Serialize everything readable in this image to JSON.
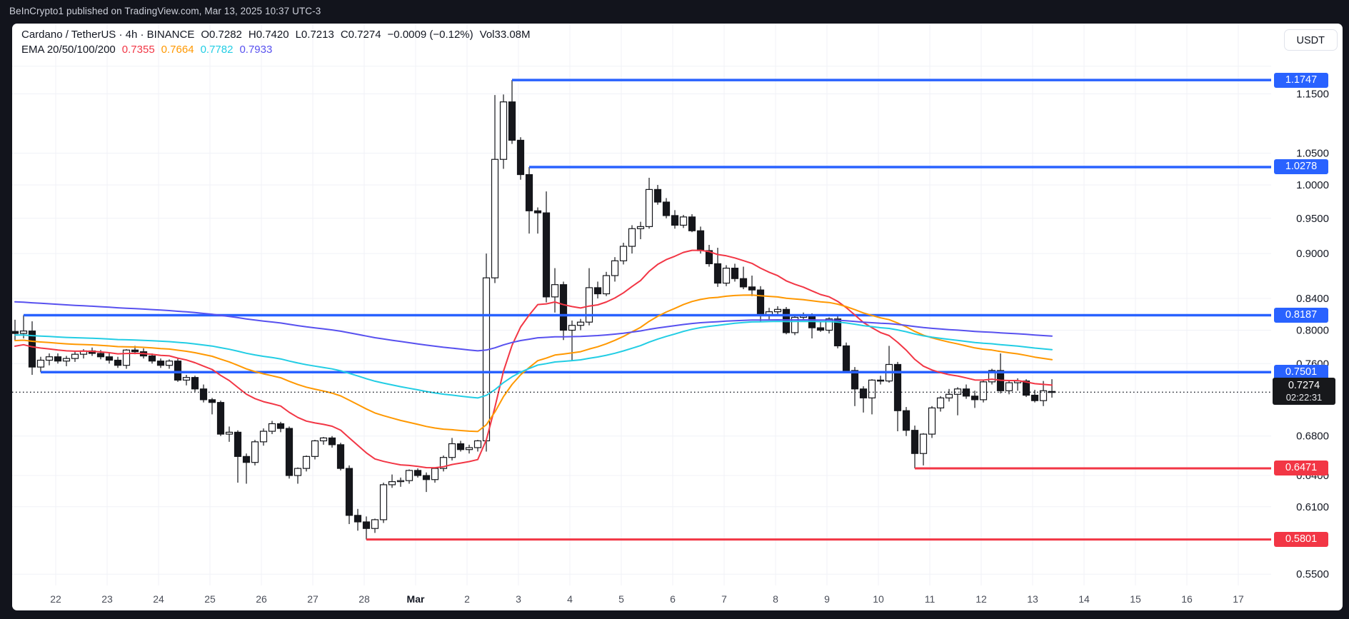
{
  "topbar": {
    "text": "BeInCrypto1 published on TradingView.com, Mar 13, 2025 10:37 UTC-3"
  },
  "legend": {
    "title": "Cardano / TetherUS · 4h · BINANCE",
    "ohlc_segments": [
      "O0.7282",
      "H0.7420",
      "L0.7213",
      "C0.7274",
      "−0.0009 (−0.12%)",
      "Vol33.08M"
    ],
    "ema_label": "EMA 20/50/100/200"
  },
  "price_scale": {
    "currency_button": "USDT"
  },
  "colors": {
    "accent_blue": "#2962ff",
    "accent_red": "#f23645",
    "candle_dark": "#15161b",
    "grid": "#f0f2f7",
    "axis_text": "#131722",
    "ema20": "#f23645",
    "ema50": "#ff9800",
    "ema100": "#22cde4",
    "ema200": "#5851ef"
  },
  "chart_data": {
    "type": "candlestick",
    "title": "Cardano / TetherUS",
    "exchange": "BINANCE",
    "interval": "4h",
    "scale": "logarithmic",
    "ylim": [
      0.535,
      1.205
    ],
    "last": {
      "price": 0.7274,
      "label": "0.7274",
      "countdown": "02:22:31"
    },
    "current_bar": {
      "open": "0.7282",
      "high": "0.7420",
      "low": "0.7213",
      "close": "0.7274",
      "change": "−0.0009",
      "change_pct": "−0.12%",
      "volume": "33.08M"
    },
    "x_axis": {
      "labels": [
        "22",
        "23",
        "24",
        "25",
        "26",
        "27",
        "28",
        "Mar",
        "2",
        "3",
        "4",
        "5",
        "6",
        "7",
        "8",
        "9",
        "10",
        "11",
        "12",
        "13",
        "14",
        "15",
        "16",
        "17"
      ],
      "month_label": "Mar",
      "candles_per_day": 6
    },
    "y_axis": {
      "labels": [
        {
          "value": 1.15,
          "text": "1.1500"
        },
        {
          "value": 1.05,
          "text": "1.0500"
        },
        {
          "value": 1.0,
          "text": "1.0000"
        },
        {
          "value": 0.95,
          "text": "0.9500"
        },
        {
          "value": 0.9,
          "text": "0.9000"
        },
        {
          "value": 0.84,
          "text": "0.8400"
        },
        {
          "value": 0.8,
          "text": "0.8000"
        },
        {
          "value": 0.76,
          "text": "0.7600"
        },
        {
          "value": 0.68,
          "text": "0.6800"
        },
        {
          "value": 0.64,
          "text": "0.6400"
        },
        {
          "value": 0.61,
          "text": "0.6100"
        },
        {
          "value": 0.55,
          "text": "0.5500"
        }
      ],
      "extra_gridlines": [
        1.2
      ]
    },
    "levels": [
      {
        "price": 1.1747,
        "label": "1.1747",
        "type": "resistance",
        "from_candle": 58
      },
      {
        "price": 1.0278,
        "label": "1.0278",
        "type": "resistance",
        "from_candle": 60
      },
      {
        "price": 0.8187,
        "label": "0.8187",
        "type": "resistance",
        "from_candle": 1
      },
      {
        "price": 0.7501,
        "label": "0.7501",
        "type": "resistance",
        "from_candle": 3
      },
      {
        "price": 0.6471,
        "label": "0.6471",
        "type": "support",
        "from_candle": 105
      },
      {
        "price": 0.5801,
        "label": "0.5801",
        "type": "support",
        "from_candle": 41
      }
    ],
    "emas": [
      {
        "period": 20,
        "seed": 0.779,
        "color": "#f23645",
        "value": "0.7355"
      },
      {
        "period": 50,
        "seed": 0.787,
        "color": "#ff9800",
        "value": "0.7664"
      },
      {
        "period": 100,
        "seed": 0.794,
        "color": "#22cde4",
        "value": "0.7782"
      },
      {
        "period": 200,
        "seed": 0.836,
        "color": "#5851ef",
        "value": "0.7933"
      }
    ],
    "candles": [
      [
        0.7985,
        0.813,
        0.788,
        0.796
      ],
      [
        0.796,
        0.8187,
        0.79,
        0.799
      ],
      [
        0.799,
        0.811,
        0.747,
        0.756
      ],
      [
        0.756,
        0.768,
        0.7501,
        0.764
      ],
      [
        0.764,
        0.772,
        0.758,
        0.768
      ],
      [
        0.768,
        0.772,
        0.76,
        0.763
      ],
      [
        0.763,
        0.769,
        0.757,
        0.766
      ],
      [
        0.766,
        0.774,
        0.762,
        0.771
      ],
      [
        0.771,
        0.777,
        0.766,
        0.775
      ],
      [
        0.775,
        0.779,
        0.769,
        0.772
      ],
      [
        0.772,
        0.776,
        0.765,
        0.768
      ],
      [
        0.768,
        0.772,
        0.76,
        0.764
      ],
      [
        0.764,
        0.768,
        0.755,
        0.758
      ],
      [
        0.758,
        0.777,
        0.754,
        0.776
      ],
      [
        0.776,
        0.781,
        0.771,
        0.774
      ],
      [
        0.774,
        0.778,
        0.766,
        0.769
      ],
      [
        0.769,
        0.772,
        0.76,
        0.763
      ],
      [
        0.763,
        0.766,
        0.755,
        0.758
      ],
      [
        0.758,
        0.765,
        0.754,
        0.763
      ],
      [
        0.763,
        0.766,
        0.739,
        0.741
      ],
      [
        0.741,
        0.747,
        0.735,
        0.744
      ],
      [
        0.744,
        0.746,
        0.728,
        0.731
      ],
      [
        0.731,
        0.736,
        0.716,
        0.719
      ],
      [
        0.719,
        0.721,
        0.703,
        0.716
      ],
      [
        0.716,
        0.718,
        0.68,
        0.682
      ],
      [
        0.682,
        0.69,
        0.674,
        0.684
      ],
      [
        0.684,
        0.686,
        0.633,
        0.659
      ],
      [
        0.659,
        0.662,
        0.632,
        0.653
      ],
      [
        0.653,
        0.676,
        0.65,
        0.674
      ],
      [
        0.674,
        0.688,
        0.67,
        0.685
      ],
      [
        0.685,
        0.696,
        0.682,
        0.693
      ],
      [
        0.693,
        0.695,
        0.684,
        0.688
      ],
      [
        0.688,
        0.69,
        0.637,
        0.64
      ],
      [
        0.64,
        0.648,
        0.632,
        0.647
      ],
      [
        0.647,
        0.66,
        0.644,
        0.659
      ],
      [
        0.659,
        0.676,
        0.656,
        0.675
      ],
      [
        0.675,
        0.679,
        0.671,
        0.678
      ],
      [
        0.678,
        0.68,
        0.668,
        0.671
      ],
      [
        0.671,
        0.673,
        0.645,
        0.647
      ],
      [
        0.647,
        0.65,
        0.594,
        0.602
      ],
      [
        0.602,
        0.608,
        0.588,
        0.596
      ],
      [
        0.596,
        0.601,
        0.5801,
        0.59
      ],
      [
        0.59,
        0.599,
        0.586,
        0.598
      ],
      [
        0.598,
        0.633,
        0.595,
        0.631
      ],
      [
        0.631,
        0.641,
        0.628,
        0.634
      ],
      [
        0.634,
        0.638,
        0.629,
        0.635
      ],
      [
        0.635,
        0.646,
        0.632,
        0.645
      ],
      [
        0.645,
        0.647,
        0.638,
        0.64
      ],
      [
        0.64,
        0.643,
        0.624,
        0.636
      ],
      [
        0.636,
        0.648,
        0.633,
        0.647
      ],
      [
        0.647,
        0.66,
        0.644,
        0.658
      ],
      [
        0.658,
        0.678,
        0.655,
        0.672
      ],
      [
        0.672,
        0.675,
        0.664,
        0.666
      ],
      [
        0.666,
        0.671,
        0.662,
        0.668
      ],
      [
        0.668,
        0.676,
        0.664,
        0.675
      ],
      [
        0.675,
        0.9,
        0.664,
        0.867
      ],
      [
        0.867,
        1.148,
        0.86,
        1.04
      ],
      [
        1.04,
        1.149,
        1.025,
        1.136
      ],
      [
        1.136,
        1.1747,
        1.065,
        1.071
      ],
      [
        1.071,
        1.076,
        1.008,
        1.016
      ],
      [
        1.016,
        1.0278,
        0.928,
        0.961
      ],
      [
        0.961,
        0.966,
        0.928,
        0.958
      ],
      [
        0.958,
        0.99,
        0.835,
        0.842
      ],
      [
        0.842,
        0.88,
        0.822,
        0.858
      ],
      [
        0.858,
        0.862,
        0.788,
        0.8
      ],
      [
        0.8,
        0.812,
        0.764,
        0.806
      ],
      [
        0.806,
        0.814,
        0.8,
        0.81
      ],
      [
        0.81,
        0.88,
        0.806,
        0.854
      ],
      [
        0.854,
        0.862,
        0.84,
        0.846
      ],
      [
        0.846,
        0.875,
        0.843,
        0.87
      ],
      [
        0.87,
        0.895,
        0.862,
        0.89
      ],
      [
        0.89,
        0.915,
        0.885,
        0.91
      ],
      [
        0.91,
        0.94,
        0.9,
        0.935
      ],
      [
        0.935,
        0.945,
        0.92,
        0.938
      ],
      [
        0.938,
        1.011,
        0.935,
        0.993
      ],
      [
        0.993,
        1.0,
        0.97,
        0.974
      ],
      [
        0.974,
        0.98,
        0.95,
        0.954
      ],
      [
        0.954,
        0.962,
        0.935,
        0.94
      ],
      [
        0.94,
        0.955,
        0.936,
        0.952
      ],
      [
        0.952,
        0.956,
        0.93,
        0.932
      ],
      [
        0.932,
        0.938,
        0.9,
        0.904
      ],
      [
        0.904,
        0.912,
        0.882,
        0.886
      ],
      [
        0.886,
        0.908,
        0.855,
        0.86
      ],
      [
        0.86,
        0.884,
        0.856,
        0.88
      ],
      [
        0.88,
        0.886,
        0.862,
        0.866
      ],
      [
        0.866,
        0.882,
        0.852,
        0.855
      ],
      [
        0.855,
        0.87,
        0.843,
        0.851
      ],
      [
        0.851,
        0.856,
        0.81,
        0.818
      ],
      [
        0.818,
        0.828,
        0.812,
        0.823
      ],
      [
        0.823,
        0.83,
        0.818,
        0.826
      ],
      [
        0.826,
        0.829,
        0.795,
        0.797
      ],
      [
        0.797,
        0.818,
        0.794,
        0.816
      ],
      [
        0.816,
        0.822,
        0.812,
        0.819
      ],
      [
        0.819,
        0.821,
        0.79,
        0.803
      ],
      [
        0.803,
        0.81,
        0.798,
        0.8
      ],
      [
        0.8,
        0.816,
        0.796,
        0.814
      ],
      [
        0.814,
        0.818,
        0.778,
        0.781
      ],
      [
        0.781,
        0.785,
        0.75,
        0.752
      ],
      [
        0.752,
        0.756,
        0.712,
        0.731
      ],
      [
        0.731,
        0.734,
        0.705,
        0.721
      ],
      [
        0.721,
        0.742,
        0.703,
        0.741
      ],
      [
        0.741,
        0.746,
        0.736,
        0.74
      ],
      [
        0.74,
        0.781,
        0.738,
        0.759
      ],
      [
        0.759,
        0.762,
        0.685,
        0.707
      ],
      [
        0.707,
        0.711,
        0.68,
        0.686
      ],
      [
        0.686,
        0.691,
        0.6471,
        0.662
      ],
      [
        0.662,
        0.683,
        0.65,
        0.682
      ],
      [
        0.682,
        0.712,
        0.678,
        0.71
      ],
      [
        0.71,
        0.723,
        0.706,
        0.721
      ],
      [
        0.721,
        0.731,
        0.717,
        0.725
      ],
      [
        0.725,
        0.733,
        0.702,
        0.731
      ],
      [
        0.731,
        0.736,
        0.72,
        0.723
      ],
      [
        0.723,
        0.729,
        0.71,
        0.719
      ],
      [
        0.719,
        0.741,
        0.716,
        0.739
      ],
      [
        0.739,
        0.754,
        0.736,
        0.752
      ],
      [
        0.752,
        0.772,
        0.726,
        0.729
      ],
      [
        0.729,
        0.74,
        0.725,
        0.738
      ],
      [
        0.738,
        0.743,
        0.729,
        0.74
      ],
      [
        0.74,
        0.742,
        0.722,
        0.724
      ],
      [
        0.724,
        0.73,
        0.716,
        0.718
      ],
      [
        0.718,
        0.74,
        0.712,
        0.729
      ],
      [
        0.7282,
        0.742,
        0.7213,
        0.7274
      ]
    ]
  }
}
